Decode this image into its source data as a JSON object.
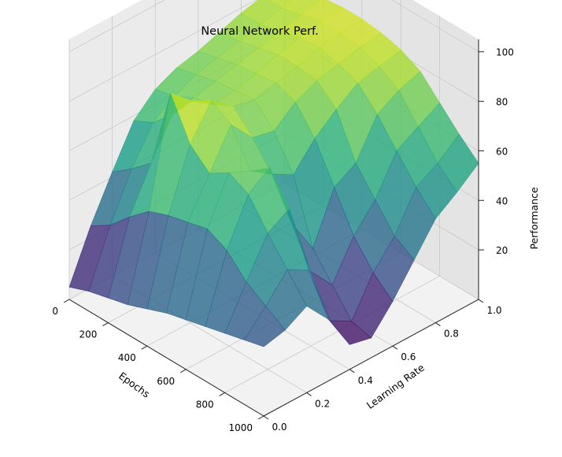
{
  "chart_data": {
    "type": "surface",
    "title": "Neural Network Perf.",
    "xlabel": "Epochs",
    "ylabel": "Learning Rate",
    "zlabel": "Performance",
    "x_ticks": [
      "0",
      "200",
      "400",
      "600",
      "800",
      "1000"
    ],
    "y_ticks": [
      "0.0",
      "0.2",
      "0.4",
      "0.6",
      "0.8",
      "1.0"
    ],
    "z_ticks": [
      "20",
      "40",
      "60",
      "80",
      "100"
    ],
    "xlim": [
      0,
      1000
    ],
    "ylim": [
      0,
      1
    ],
    "zlim": [
      0,
      105
    ],
    "grid": true,
    "colormap": "viridis",
    "series": [
      {
        "lr": [
          0.0,
          0.1,
          0.2,
          0.3,
          0.4,
          0.5,
          0.6,
          0.7,
          0.8,
          0.9,
          1.0
        ],
        "rows": [
          {
            "epochs": 0,
            "performance": [
              5,
              25,
              42,
              58,
              66,
              70,
              72,
              75,
              78,
              80,
              82
            ]
          },
          {
            "epochs": 100,
            "performance": [
              8,
              30,
              48,
              62,
              68,
              72,
              74,
              76,
              78,
              80,
              83
            ]
          },
          {
            "epochs": 200,
            "performance": [
              10,
              38,
              55,
              70,
              72,
              74,
              76,
              78,
              80,
              82,
              84
            ]
          },
          {
            "epochs": 300,
            "performance": [
              12,
              45,
              88,
              80,
              74,
              75,
              77,
              80,
              82,
              84,
              85
            ]
          },
          {
            "epochs": 400,
            "performance": [
              15,
              48,
              72,
              85,
              78,
              76,
              78,
              80,
              83,
              84,
              85
            ]
          },
          {
            "epochs": 500,
            "performance": [
              18,
              50,
              65,
              80,
              70,
              68,
              75,
              79,
              81,
              83,
              84
            ]
          },
          {
            "epochs": 600,
            "performance": [
              20,
              52,
              70,
              66,
              60,
              55,
              65,
              72,
              78,
              80,
              82
            ]
          },
          {
            "epochs": 700,
            "performance": [
              22,
              48,
              66,
              72,
              45,
              30,
              50,
              55,
              70,
              75,
              78
            ]
          },
          {
            "epochs": 800,
            "performance": [
              24,
              40,
              55,
              60,
              30,
              20,
              35,
              45,
              60,
              65,
              70
            ]
          },
          {
            "epochs": 900,
            "performance": [
              26,
              35,
              45,
              40,
              15,
              10,
              25,
              35,
              50,
              55,
              62
            ]
          },
          {
            "epochs": 1000,
            "performance": [
              28,
              30,
              35,
              25,
              10,
              8,
              18,
              30,
              42,
              48,
              55
            ]
          }
        ]
      }
    ]
  }
}
